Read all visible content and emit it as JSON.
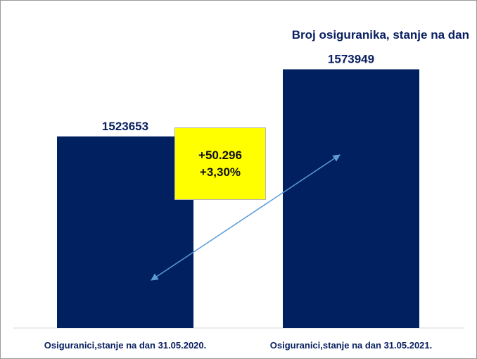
{
  "chart_data": {
    "type": "bar",
    "title": "Broj osiguranika, stanje na dan",
    "categories": [
      "Osiguranici,stanje na dan 31.05.2020.",
      "Osiguranici,stanje na dan 31.05.2021."
    ],
    "values": [
      1523653,
      1573949
    ],
    "value_labels": [
      "1523653",
      "1573949"
    ],
    "bar_color": "#002060",
    "ylim": [
      1380000,
      1580000
    ],
    "grid": false,
    "legend": "none",
    "annotation": {
      "lines": [
        "+50.296",
        "+3,30%"
      ],
      "background": "#ffff00",
      "arrow_color": "#5b9bd5"
    }
  }
}
